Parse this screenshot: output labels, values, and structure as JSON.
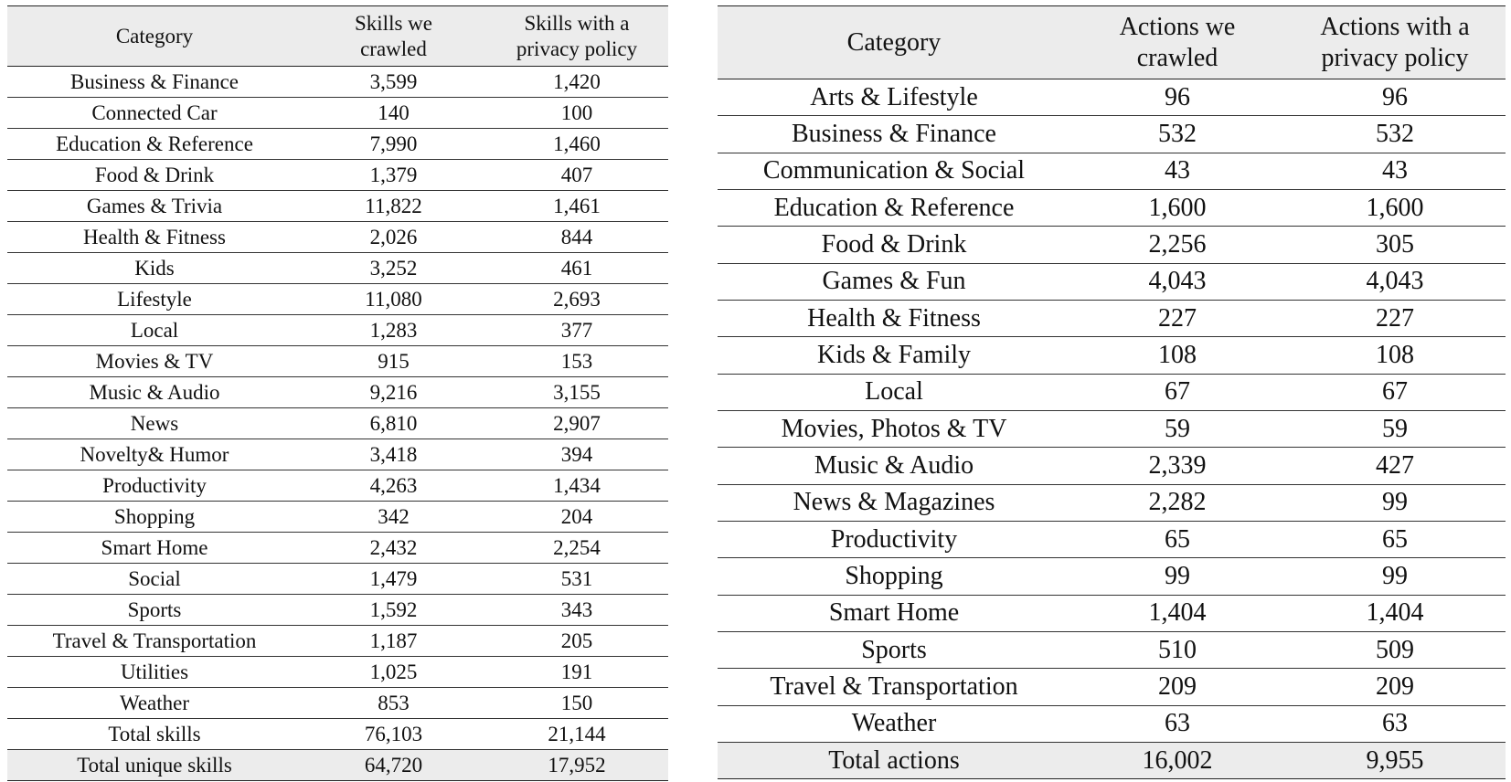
{
  "skills_table": {
    "headers": [
      "Category",
      "Skills we crawled",
      "Skills with a privacy policy"
    ],
    "header_lines": {
      "col2": [
        "Skills we",
        "crawled"
      ],
      "col3": [
        "Skills with a",
        "privacy policy"
      ]
    },
    "rows": [
      [
        "Business & Finance",
        "3,599",
        "1,420"
      ],
      [
        "Connected Car",
        "140",
        "100"
      ],
      [
        "Education & Reference",
        "7,990",
        "1,460"
      ],
      [
        "Food & Drink",
        "1,379",
        "407"
      ],
      [
        "Games & Trivia",
        "11,822",
        "1,461"
      ],
      [
        "Health & Fitness",
        "2,026",
        "844"
      ],
      [
        "Kids",
        "3,252",
        "461"
      ],
      [
        "Lifestyle",
        "11,080",
        "2,693"
      ],
      [
        "Local",
        "1,283",
        "377"
      ],
      [
        "Movies & TV",
        "915",
        "153"
      ],
      [
        "Music & Audio",
        "9,216",
        "3,155"
      ],
      [
        "News",
        "6,810",
        "2,907"
      ],
      [
        "Novelty& Humor",
        "3,418",
        "394"
      ],
      [
        "Productivity",
        "4,263",
        "1,434"
      ],
      [
        "Shopping",
        "342",
        "204"
      ],
      [
        "Smart Home",
        "2,432",
        "2,254"
      ],
      [
        "Social",
        "1,479",
        "531"
      ],
      [
        "Sports",
        "1,592",
        "343"
      ],
      [
        "Travel & Transportation",
        "1,187",
        "205"
      ],
      [
        "Utilities",
        "1,025",
        "191"
      ],
      [
        "Weather",
        "853",
        "150"
      ],
      [
        "Total skills",
        "76,103",
        "21,144"
      ],
      [
        "Total unique skills",
        "64,720",
        "17,952"
      ]
    ]
  },
  "actions_table": {
    "headers": [
      "Category",
      "Actions we crawled",
      "Actions with a privacy policy"
    ],
    "header_lines": {
      "col2": [
        "Actions we",
        "crawled"
      ],
      "col3": [
        "Actions with a",
        "privacy policy"
      ]
    },
    "rows": [
      [
        "Arts & Lifestyle",
        "96",
        "96"
      ],
      [
        "Business & Finance",
        "532",
        "532"
      ],
      [
        "Communication & Social",
        "43",
        "43"
      ],
      [
        "Education & Reference",
        "1,600",
        "1,600"
      ],
      [
        "Food & Drink",
        "2,256",
        "305"
      ],
      [
        "Games & Fun",
        "4,043",
        "4,043"
      ],
      [
        "Health & Fitness",
        "227",
        "227"
      ],
      [
        "Kids & Family",
        "108",
        "108"
      ],
      [
        "Local",
        "67",
        "67"
      ],
      [
        "Movies, Photos & TV",
        "59",
        "59"
      ],
      [
        "Music & Audio",
        "2,339",
        "427"
      ],
      [
        "News & Magazines",
        "2,282",
        "99"
      ],
      [
        "Productivity",
        "65",
        "65"
      ],
      [
        "Shopping",
        "99",
        "99"
      ],
      [
        "Smart Home",
        "1,404",
        "1,404"
      ],
      [
        "Sports",
        "510",
        "509"
      ],
      [
        "Travel & Transportation",
        "209",
        "209"
      ],
      [
        "Weather",
        "63",
        "63"
      ],
      [
        "Total actions",
        "16,002",
        "9,955"
      ]
    ]
  },
  "colors": {
    "header_bg": "#ececec",
    "rule": "#222222",
    "text": "#111111"
  }
}
